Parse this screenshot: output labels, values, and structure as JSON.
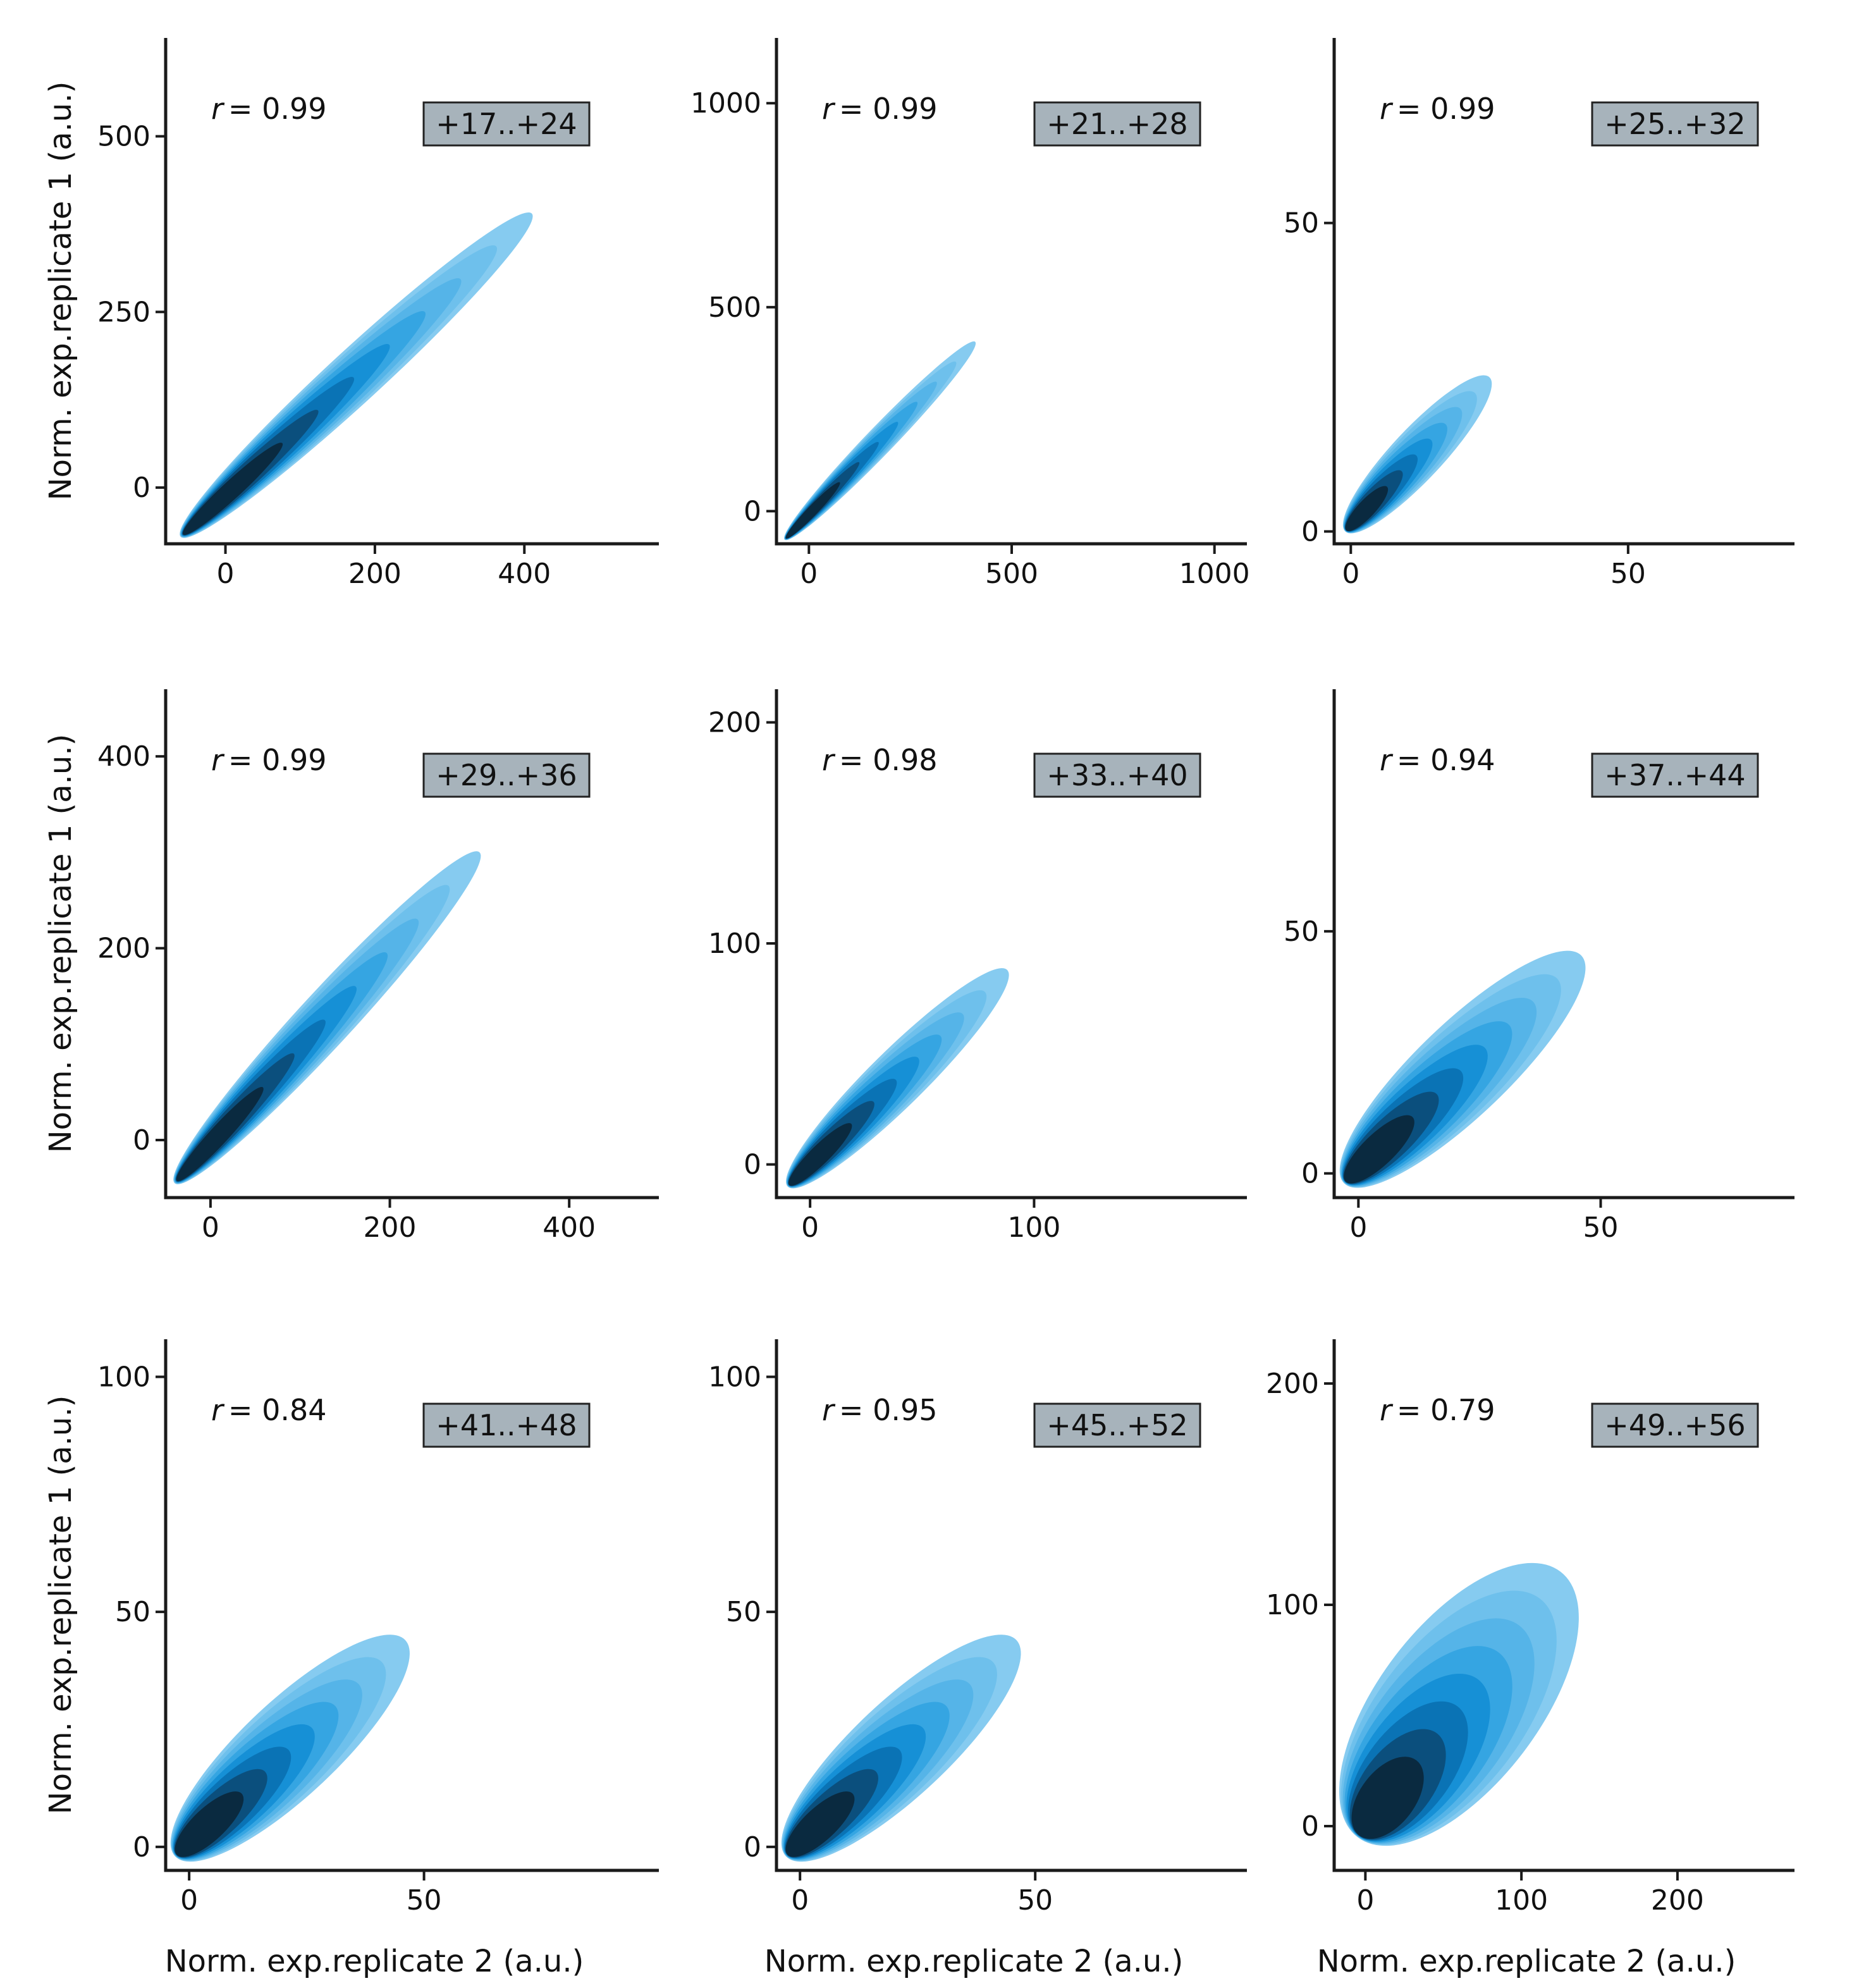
{
  "figure": {
    "ylabel": "Norm. exp.replicate 1 (a.u.)",
    "xlabel": "Norm. exp.replicate 2 (a.u.)"
  },
  "colors": {
    "axis": "#1a1a1a",
    "badge_fill": "#a7b3bb",
    "badge_stroke": "#222222",
    "density_levels": [
      "#86cbf0",
      "#6ec0ec",
      "#55b4e8",
      "#35a5e2",
      "#1690d6",
      "#0a73b5",
      "#0b4f7d",
      "#0a2a40"
    ]
  },
  "chart_data": [
    {
      "type": "density",
      "title": "+17..+24",
      "r_prefix": "r",
      "r_value": "= 0.99",
      "xlim": [
        -80,
        580
      ],
      "ylim": [
        -80,
        640
      ],
      "xticks": [
        0,
        200,
        400
      ],
      "yticks": [
        0,
        250,
        500
      ],
      "trend": {
        "x": [
          -60,
          410
        ],
        "y": [
          -70,
          390
        ]
      },
      "spread": 0.055,
      "ylabel": true,
      "xlabel": false
    },
    {
      "type": "density",
      "title": "+21..+28",
      "r_prefix": "r",
      "r_value": "= 0.99",
      "xlim": [
        -80,
        1080
      ],
      "ylim": [
        -80,
        1160
      ],
      "xticks": [
        0,
        500,
        1000
      ],
      "yticks": [
        0,
        500,
        1000
      ],
      "trend": {
        "x": [
          -60,
          410
        ],
        "y": [
          -70,
          415
        ]
      },
      "spread": 0.05,
      "ylabel": false,
      "xlabel": false
    },
    {
      "type": "density",
      "title": "+25..+32",
      "r_prefix": "r",
      "r_value": "= 0.99",
      "xlim": [
        -3,
        80
      ],
      "ylim": [
        -2,
        80
      ],
      "xticks": [
        0,
        50
      ],
      "yticks": [
        0,
        50
      ],
      "trend": {
        "x": [
          -1,
          25
        ],
        "y": [
          0,
          25
        ]
      },
      "spread": 0.12,
      "ylabel": false,
      "xlabel": false
    },
    {
      "type": "density",
      "title": "+29..+36",
      "r_prefix": "r",
      "r_value": "= 0.99",
      "xlim": [
        -50,
        500
      ],
      "ylim": [
        -60,
        470
      ],
      "xticks": [
        0,
        200,
        400
      ],
      "yticks": [
        0,
        200,
        400
      ],
      "trend": {
        "x": [
          -40,
          300
        ],
        "y": [
          -45,
          300
        ]
      },
      "spread": 0.06,
      "ylabel": true,
      "xlabel": false
    },
    {
      "type": "density",
      "title": "+33..+40",
      "r_prefix": "r",
      "r_value": "= 0.98",
      "xlim": [
        -15,
        195
      ],
      "ylim": [
        -15,
        215
      ],
      "xticks": [
        0,
        100
      ],
      "yticks": [
        0,
        100,
        200
      ],
      "trend": {
        "x": [
          -10,
          88
        ],
        "y": [
          -10,
          88
        ]
      },
      "spread": 0.09,
      "ylabel": false,
      "xlabel": false
    },
    {
      "type": "density",
      "title": "+37..+44",
      "r_prefix": "r",
      "r_value": "= 0.94",
      "xlim": [
        -5,
        90
      ],
      "ylim": [
        -5,
        100
      ],
      "xticks": [
        0,
        50
      ],
      "yticks": [
        0,
        50
      ],
      "trend": {
        "x": [
          -3,
          46
        ],
        "y": [
          -2,
          45
        ]
      },
      "spread": 0.14,
      "ylabel": false,
      "xlabel": false
    },
    {
      "type": "density",
      "title": "+41..+48",
      "r_prefix": "r",
      "r_value": "= 0.84",
      "xlim": [
        -5,
        100
      ],
      "ylim": [
        -5,
        108
      ],
      "xticks": [
        0,
        50
      ],
      "yticks": [
        0,
        50,
        100
      ],
      "trend": {
        "x": [
          -3,
          46
        ],
        "y": [
          -2,
          44
        ]
      },
      "spread": 0.15,
      "ylabel": true,
      "xlabel": true
    },
    {
      "type": "density",
      "title": "+45..+52",
      "r_prefix": "r",
      "r_value": "= 0.95",
      "xlim": [
        -5,
        95
      ],
      "ylim": [
        -5,
        108
      ],
      "xticks": [
        0,
        50
      ],
      "yticks": [
        0,
        50,
        100
      ],
      "trend": {
        "x": [
          -3,
          46
        ],
        "y": [
          -2,
          44
        ]
      },
      "spread": 0.15,
      "ylabel": false,
      "xlabel": true
    },
    {
      "type": "density",
      "title": "+49..+56",
      "r_prefix": "r",
      "r_value": "= 0.79",
      "xlim": [
        -20,
        275
      ],
      "ylim": [
        -20,
        220
      ],
      "xticks": [
        0,
        100,
        200
      ],
      "yticks": [
        0,
        100,
        200
      ],
      "trend": {
        "x": [
          -5,
          125
        ],
        "y": [
          -5,
          115
        ]
      },
      "spread": 0.24,
      "ylabel": false,
      "xlabel": true
    }
  ]
}
